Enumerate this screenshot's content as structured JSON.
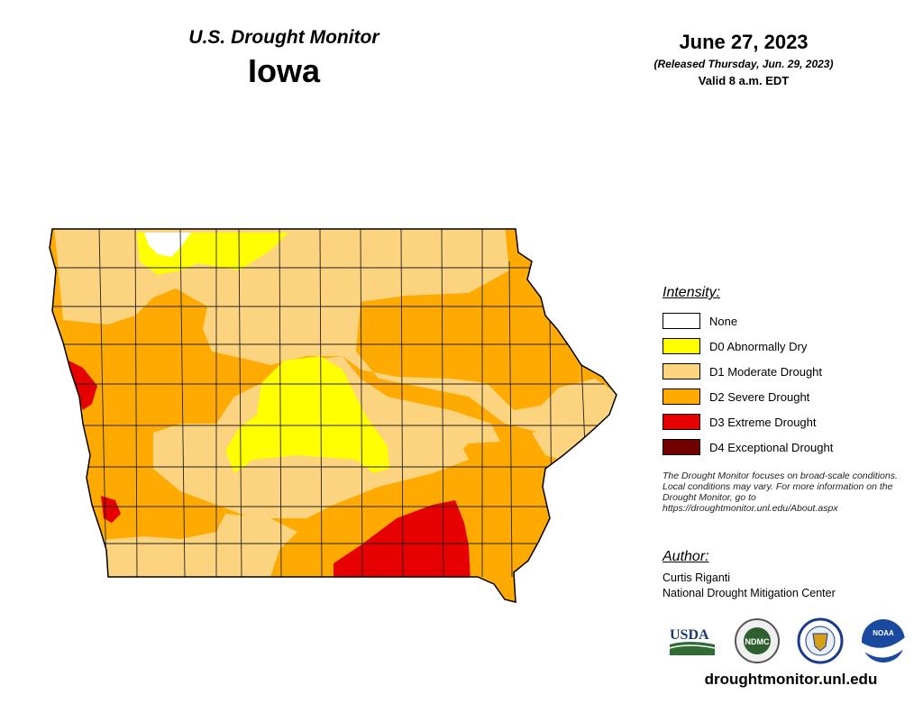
{
  "header": {
    "product_title": "U.S. Drought Monitor",
    "state_name": "Iowa",
    "map_date": "June 27, 2023",
    "release_line": "(Released Thursday, Jun. 29, 2023)",
    "valid_line": "Valid 8 a.m. EDT"
  },
  "legend": {
    "title": "Intensity:",
    "items": [
      {
        "label": "None",
        "color": "#ffffff"
      },
      {
        "label": "D0 Abnormally Dry",
        "color": "#ffff00"
      },
      {
        "label": "D1 Moderate Drought",
        "color": "#fcd37f"
      },
      {
        "label": "D2 Severe Drought",
        "color": "#ffaa00"
      },
      {
        "label": "D3 Extreme Drought",
        "color": "#e60000"
      },
      {
        "label": "D4 Exceptional Drought",
        "color": "#730000"
      }
    ]
  },
  "disclaimer": "The Drought Monitor focuses on broad-scale conditions. Local conditions may vary. For more information on the Drought Monitor, go to https://droughtmonitor.unl.edu/About.aspx",
  "author": {
    "title": "Author:",
    "name": "Curtis Riganti",
    "organization": "National Drought Mitigation Center"
  },
  "logos": [
    {
      "name": "usda-logo",
      "text": "USDA"
    },
    {
      "name": "ndmc-logo",
      "text": "NDMC"
    },
    {
      "name": "commerce-logo",
      "text": ""
    },
    {
      "name": "noaa-logo",
      "text": "NOAA"
    }
  ],
  "site_url": "droughtmonitor.unl.edu"
}
